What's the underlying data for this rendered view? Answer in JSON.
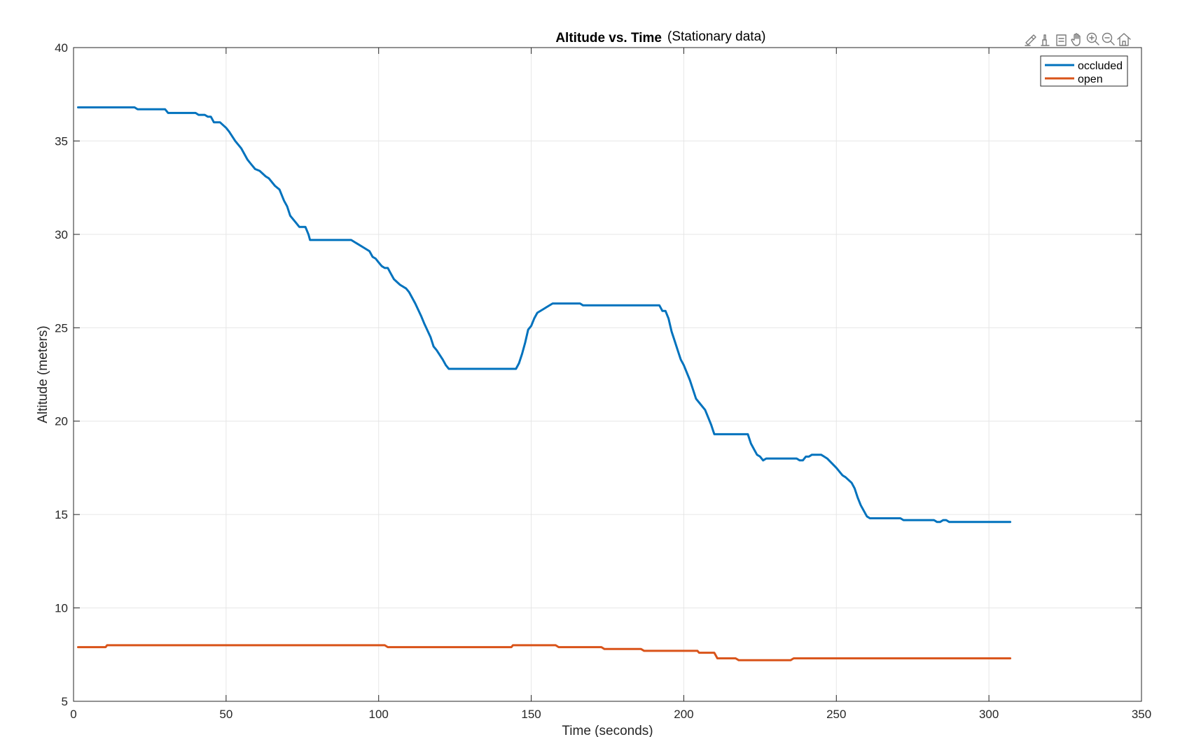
{
  "chart_data": {
    "type": "line",
    "title": "Altitude vs. Time",
    "subtitle": "(Stationary data)",
    "xlabel": "Time (seconds)",
    "ylabel": "Altitude (meters)",
    "xlim": [
      0,
      350
    ],
    "ylim": [
      5,
      40
    ],
    "xticks": [
      0,
      50,
      100,
      150,
      200,
      250,
      300,
      350
    ],
    "yticks": [
      5,
      10,
      15,
      20,
      25,
      30,
      35,
      40
    ],
    "xtick_labels": [
      "0",
      "50",
      "100",
      "150",
      "200",
      "250",
      "300",
      "350"
    ],
    "ytick_labels": [
      "5",
      "10",
      "15",
      "20",
      "25",
      "30",
      "35",
      "40"
    ],
    "grid": true,
    "legend_position": "top-right",
    "series": [
      {
        "name": "occluded",
        "color": "#0072BD",
        "points": [
          [
            1.5,
            36.8
          ],
          [
            20,
            36.8
          ],
          [
            21,
            36.7
          ],
          [
            30,
            36.7
          ],
          [
            31,
            36.5
          ],
          [
            40,
            36.5
          ],
          [
            41,
            36.4
          ],
          [
            43,
            36.4
          ],
          [
            44,
            36.3
          ],
          [
            45,
            36.3
          ],
          [
            46,
            36.0
          ],
          [
            48,
            36.0
          ],
          [
            50,
            35.7
          ],
          [
            51,
            35.5
          ],
          [
            53,
            35.0
          ],
          [
            55,
            34.6
          ],
          [
            57,
            34.0
          ],
          [
            58,
            33.8
          ],
          [
            59.5,
            33.5
          ],
          [
            61,
            33.4
          ],
          [
            63,
            33.1
          ],
          [
            64,
            33.0
          ],
          [
            66,
            32.6
          ],
          [
            67.5,
            32.4
          ],
          [
            69,
            31.8
          ],
          [
            70,
            31.5
          ],
          [
            71,
            31.0
          ],
          [
            73,
            30.6
          ],
          [
            74,
            30.4
          ],
          [
            75,
            30.4
          ],
          [
            76,
            30.4
          ],
          [
            77,
            30.0
          ],
          [
            77.5,
            29.7
          ],
          [
            91,
            29.7
          ],
          [
            93,
            29.5
          ],
          [
            95,
            29.3
          ],
          [
            97,
            29.1
          ],
          [
            98,
            28.8
          ],
          [
            99,
            28.7
          ],
          [
            100,
            28.5
          ],
          [
            101,
            28.3
          ],
          [
            102,
            28.2
          ],
          [
            103,
            28.2
          ],
          [
            104,
            27.9
          ],
          [
            105,
            27.6
          ],
          [
            107,
            27.3
          ],
          [
            109,
            27.1
          ],
          [
            110,
            26.9
          ],
          [
            112,
            26.3
          ],
          [
            114,
            25.6
          ],
          [
            115,
            25.2
          ],
          [
            117,
            24.5
          ],
          [
            118,
            24.0
          ],
          [
            119,
            23.8
          ],
          [
            121,
            23.3
          ],
          [
            122,
            23.0
          ],
          [
            123,
            22.8
          ],
          [
            145,
            22.8
          ],
          [
            146,
            23.1
          ],
          [
            147,
            23.6
          ],
          [
            148,
            24.2
          ],
          [
            149,
            24.9
          ],
          [
            150,
            25.1
          ],
          [
            151,
            25.5
          ],
          [
            152,
            25.8
          ],
          [
            154,
            26.0
          ],
          [
            155,
            26.1
          ],
          [
            157,
            26.3
          ],
          [
            166,
            26.3
          ],
          [
            167,
            26.2
          ],
          [
            192,
            26.2
          ],
          [
            193,
            25.9
          ],
          [
            194,
            25.9
          ],
          [
            195,
            25.5
          ],
          [
            196,
            24.8
          ],
          [
            197,
            24.3
          ],
          [
            198,
            23.8
          ],
          [
            199,
            23.3
          ],
          [
            200,
            23.0
          ],
          [
            202,
            22.2
          ],
          [
            203,
            21.7
          ],
          [
            204,
            21.2
          ],
          [
            205,
            21.0
          ],
          [
            207,
            20.6
          ],
          [
            208,
            20.2
          ],
          [
            209,
            19.8
          ],
          [
            210,
            19.3
          ],
          [
            221,
            19.3
          ],
          [
            222,
            18.8
          ],
          [
            223,
            18.5
          ],
          [
            224,
            18.2
          ],
          [
            225,
            18.1
          ],
          [
            226,
            17.9
          ],
          [
            227,
            18.0
          ],
          [
            237,
            18.0
          ],
          [
            238,
            17.9
          ],
          [
            239,
            17.9
          ],
          [
            240,
            18.1
          ],
          [
            241,
            18.1
          ],
          [
            242,
            18.2
          ],
          [
            245,
            18.2
          ],
          [
            246,
            18.1
          ],
          [
            247,
            18.0
          ],
          [
            250,
            17.5
          ],
          [
            252,
            17.1
          ],
          [
            253,
            17.0
          ],
          [
            255,
            16.7
          ],
          [
            256,
            16.4
          ],
          [
            257,
            15.9
          ],
          [
            258,
            15.5
          ],
          [
            259,
            15.2
          ],
          [
            260,
            14.9
          ],
          [
            261,
            14.8
          ],
          [
            271,
            14.8
          ],
          [
            272,
            14.7
          ],
          [
            282,
            14.7
          ],
          [
            283,
            14.6
          ],
          [
            284,
            14.6
          ],
          [
            285,
            14.7
          ],
          [
            286,
            14.7
          ],
          [
            287,
            14.6
          ],
          [
            307,
            14.6
          ]
        ]
      },
      {
        "name": "open",
        "color": "#D95319",
        "points": [
          [
            1.5,
            7.9
          ],
          [
            10.5,
            7.9
          ],
          [
            11,
            8.0
          ],
          [
            102,
            8.0
          ],
          [
            103,
            7.9
          ],
          [
            143.5,
            7.9
          ],
          [
            144,
            8.0
          ],
          [
            158,
            8.0
          ],
          [
            159,
            7.9
          ],
          [
            173,
            7.9
          ],
          [
            174,
            7.8
          ],
          [
            186,
            7.8
          ],
          [
            187,
            7.7
          ],
          [
            204.5,
            7.7
          ],
          [
            205,
            7.6
          ],
          [
            210,
            7.6
          ],
          [
            211,
            7.3
          ],
          [
            217,
            7.3
          ],
          [
            218,
            7.2
          ],
          [
            235,
            7.2
          ],
          [
            236,
            7.3
          ],
          [
            307,
            7.3
          ]
        ]
      }
    ]
  },
  "toolbar": {
    "icons": [
      "brush-icon",
      "data-tips-icon",
      "restore-view-icon",
      "pan-icon",
      "zoom-in-icon",
      "zoom-out-icon",
      "home-icon"
    ]
  }
}
